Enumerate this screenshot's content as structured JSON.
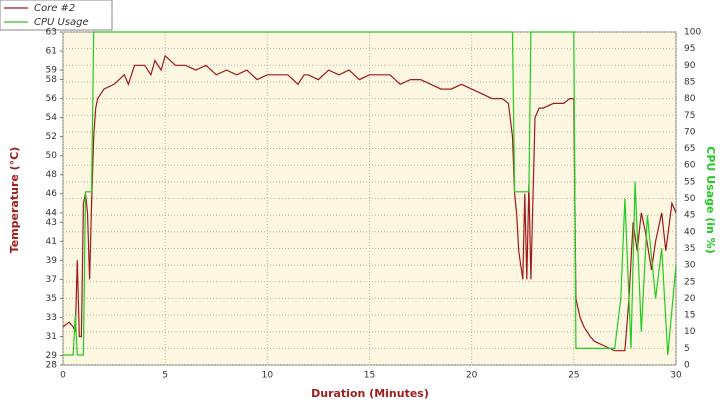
{
  "chart_data": {
    "type": "line",
    "x_label": "Duration (Minutes)",
    "y_label": "Temperature (°C)",
    "y2_label": "CPU Usage (in %)",
    "xlim": [
      0,
      30
    ],
    "xticks": [
      0,
      5,
      10,
      15,
      20,
      25,
      30
    ],
    "ylim": [
      28,
      63
    ],
    "yticks": [
      28,
      29,
      31,
      33,
      35,
      37,
      39,
      41,
      43,
      44,
      46,
      48,
      50,
      52,
      54,
      56,
      58,
      59,
      61,
      63
    ],
    "y2lim": [
      0,
      100
    ],
    "y2ticks": [
      0,
      5,
      10,
      15,
      20,
      25,
      30,
      35,
      40,
      45,
      50,
      55,
      60,
      65,
      70,
      75,
      80,
      85,
      90,
      95,
      100
    ],
    "grid": true,
    "legend": "top-left",
    "series": [
      {
        "name": "Core #2",
        "color": "#9e1b1b",
        "x": [
          0,
          0.3,
          0.5,
          0.6,
          0.7,
          0.8,
          0.9,
          1.0,
          1.1,
          1.2,
          1.3,
          1.4,
          1.5,
          1.6,
          1.7,
          2.0,
          2.5,
          3.0,
          3.2,
          3.5,
          4.0,
          4.3,
          4.5,
          4.8,
          5.0,
          5.5,
          6.0,
          6.5,
          7.0,
          7.5,
          8.0,
          8.5,
          9.0,
          9.5,
          10.0,
          10.5,
          11.0,
          11.5,
          11.8,
          12.0,
          12.5,
          13.0,
          13.5,
          14.0,
          14.5,
          15.0,
          15.5,
          16.0,
          16.5,
          17.0,
          17.5,
          18.0,
          18.5,
          19.0,
          19.5,
          20.0,
          20.5,
          21.0,
          21.5,
          21.8,
          22.0,
          22.1,
          22.2,
          22.3,
          22.5,
          22.6,
          22.7,
          22.8,
          22.9,
          23.1,
          23.3,
          23.5,
          24.0,
          24.5,
          24.8,
          25.0,
          25.1,
          25.3,
          25.5,
          25.8,
          26.0,
          26.5,
          27.0,
          27.5,
          27.7,
          27.9,
          28.1,
          28.3,
          28.5,
          28.8,
          29.0,
          29.3,
          29.5,
          29.8,
          30.0
        ],
        "values": [
          32,
          32.5,
          32,
          31.5,
          39,
          31,
          31,
          45,
          46,
          44,
          37,
          45,
          52,
          55,
          56,
          57,
          57.5,
          58.5,
          57.5,
          59.5,
          59.5,
          58.5,
          60,
          59,
          60.5,
          59.5,
          59.5,
          59,
          59.5,
          58.5,
          59,
          58.5,
          59,
          58,
          58.5,
          58.5,
          58.5,
          57.5,
          58.5,
          58.5,
          58,
          59,
          58.5,
          59,
          58,
          58.5,
          58.5,
          58.5,
          57.5,
          58,
          58,
          57.5,
          57,
          57,
          57.5,
          57,
          56.5,
          56,
          56,
          55.5,
          52,
          46,
          44,
          40,
          37,
          46,
          37,
          47,
          37,
          54,
          55,
          55,
          55.5,
          55.5,
          56,
          56,
          35,
          33,
          32,
          31,
          30.5,
          30,
          29.5,
          29.5,
          35,
          43,
          40,
          44,
          42,
          38,
          41,
          44,
          40,
          45,
          44
        ]
      },
      {
        "name": "CPU Usage",
        "color": "#22cc22",
        "axis": "y2",
        "x": [
          0,
          0.5,
          0.6,
          0.7,
          0.9,
          1.0,
          1.1,
          1.4,
          1.5,
          22.0,
          22.1,
          22.8,
          22.9,
          25.0,
          25.1,
          26.0,
          27.0,
          27.3,
          27.5,
          27.8,
          28.0,
          28.3,
          28.6,
          29.0,
          29.3,
          29.6,
          30.0
        ],
        "values": [
          3,
          3,
          15,
          3,
          3,
          3,
          52,
          52,
          100,
          100,
          52,
          52,
          100,
          100,
          5,
          5,
          5,
          20,
          50,
          5,
          55,
          10,
          45,
          20,
          35,
          3,
          30
        ]
      }
    ]
  }
}
